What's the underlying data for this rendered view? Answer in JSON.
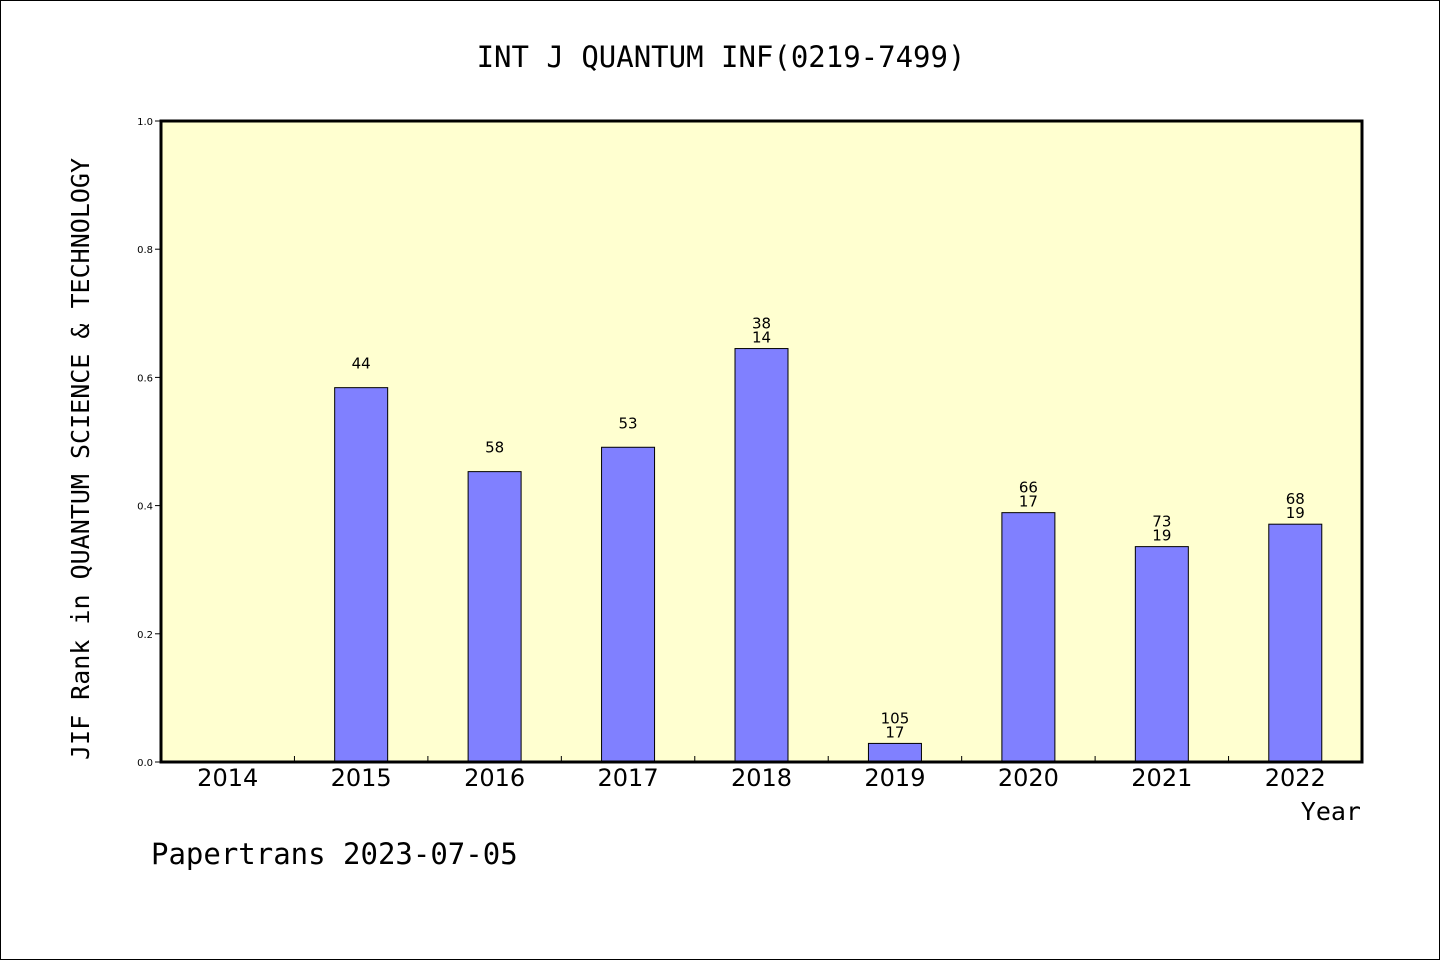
{
  "chart_data": {
    "type": "bar",
    "title": "INT J QUANTUM INF(0219-7499)",
    "xlabel": "Year",
    "ylabel": "JIF Rank in QUANTUM SCIENCE & TECHNOLOGY",
    "ylim": [
      0,
      1.0
    ],
    "yticks": [
      "0.0",
      "0.2",
      "0.4",
      "0.6",
      "0.8",
      "1.0"
    ],
    "grid": false,
    "categories": [
      "2014",
      "2015",
      "2016",
      "2017",
      "2018",
      "2019",
      "2020",
      "2021",
      "2022"
    ],
    "values": [
      null,
      0.584,
      0.453,
      0.491,
      0.645,
      0.029,
      0.389,
      0.336,
      0.371
    ],
    "labels": [
      [],
      [
        "44"
      ],
      [
        "58"
      ],
      [
        "53"
      ],
      [
        "38",
        "14"
      ],
      [
        "105",
        "17"
      ],
      [
        "66",
        "17"
      ],
      [
        "73",
        "19"
      ],
      [
        "68",
        "19"
      ]
    ],
    "bar_color": "#8080ff",
    "plot_background": "#ffffd0"
  },
  "footer": {
    "text": "Papertrans 2023-07-05"
  }
}
